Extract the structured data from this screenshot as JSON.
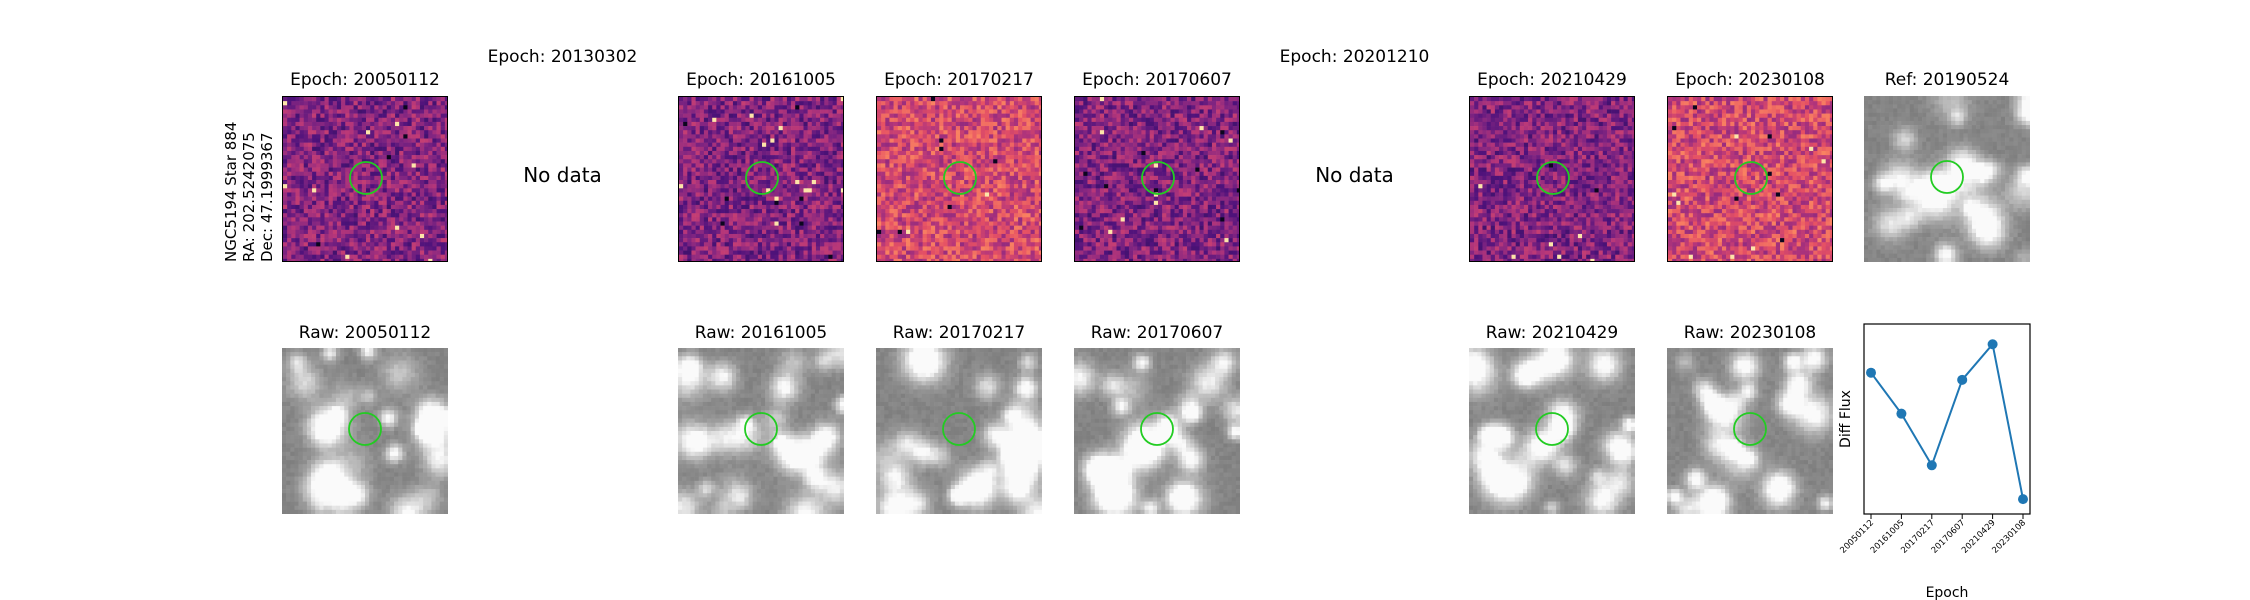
{
  "star_label": {
    "name": "NGC5194 Star 884",
    "ra": "RA: 202.5242075",
    "dec": "Dec: 47.1999367"
  },
  "top_row": [
    {
      "title": "Epoch: 20050112",
      "has_data": true
    },
    {
      "title": "Epoch: 20130302",
      "has_data": false,
      "no_data_text": "No data"
    },
    {
      "title": "Epoch: 20161005",
      "has_data": true
    },
    {
      "title": "Epoch: 20170217",
      "has_data": true
    },
    {
      "title": "Epoch: 20170607",
      "has_data": true
    },
    {
      "title": "Epoch: 20201210",
      "has_data": false,
      "no_data_text": "No data"
    },
    {
      "title": "Epoch: 20210429",
      "has_data": true
    },
    {
      "title": "Epoch: 20230108",
      "has_data": true
    },
    {
      "title": "Ref: 20190524",
      "has_data": true
    }
  ],
  "bottom_row": [
    {
      "title": "Raw: 20050112"
    },
    {
      "title": "Raw: 20161005"
    },
    {
      "title": "Raw: 20170217"
    },
    {
      "title": "Raw: 20170607"
    },
    {
      "title": "Raw: 20210429"
    },
    {
      "title": "Raw: 20230108"
    }
  ],
  "colors": {
    "marker_circle": "#22cc22",
    "line": "#1f77b4"
  },
  "chart_data": {
    "type": "line",
    "x": [
      "20050112",
      "20161005",
      "20170217",
      "20170607",
      "20210429",
      "20230108"
    ],
    "series": [
      {
        "values": [
          0.76,
          0.53,
          0.24,
          0.72,
          0.92,
          0.05
        ]
      }
    ],
    "xlabel": "Epoch",
    "ylabel": "Diff Flux",
    "ylim": [
      0,
      1
    ]
  }
}
